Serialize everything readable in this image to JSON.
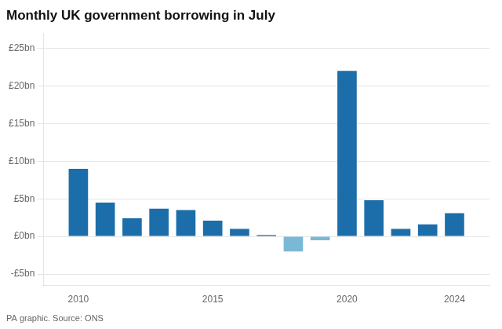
{
  "chart_data": {
    "type": "bar",
    "title": "Monthly UK government borrowing in July",
    "source": "PA graphic. Source: ONS",
    "x": [
      2010,
      2011,
      2012,
      2013,
      2014,
      2015,
      2016,
      2017,
      2018,
      2019,
      2020,
      2021,
      2022,
      2023,
      2024
    ],
    "values": [
      9.0,
      4.5,
      2.4,
      3.7,
      3.5,
      2.1,
      1.0,
      0.2,
      -2.0,
      -0.5,
      22.0,
      4.8,
      1.0,
      1.6,
      3.1
    ],
    "colors": [
      "#1b6eaa",
      "#1b6eaa",
      "#1b6eaa",
      "#1b6eaa",
      "#1b6eaa",
      "#1b6eaa",
      "#1b6eaa",
      "#1b6eaa",
      "#7ab8d8",
      "#7ab8d8",
      "#1b6eaa",
      "#1b6eaa",
      "#1b6eaa",
      "#1b6eaa",
      "#1b6eaa"
    ],
    "xlim": [
      2008.7,
      2025.3
    ],
    "xticks": [
      2010,
      2015,
      2020,
      2024
    ],
    "ylim": [
      -6.5,
      27
    ],
    "yticks": [
      {
        "value": -5,
        "label": "-£5bn"
      },
      {
        "value": 0,
        "label": "£0bn"
      },
      {
        "value": 5,
        "label": "£5bn"
      },
      {
        "value": 10,
        "label": "£10bn"
      },
      {
        "value": 15,
        "label": "£15bn"
      },
      {
        "value": 20,
        "label": "£20bn"
      },
      {
        "value": 25,
        "label": "£25bn"
      }
    ],
    "grid": true
  }
}
